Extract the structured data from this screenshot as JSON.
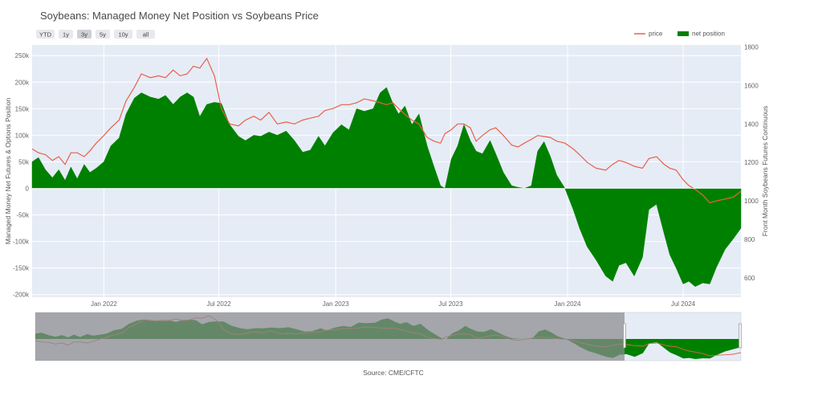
{
  "title": "Soybeans: Managed Money Net Position vs Soybeans Price",
  "range_buttons": [
    {
      "label": "YTD",
      "active": false
    },
    {
      "label": "1y",
      "active": false
    },
    {
      "label": "3y",
      "active": true
    },
    {
      "label": "5y",
      "active": false
    },
    {
      "label": "10y",
      "active": false
    },
    {
      "label": "all",
      "active": false
    }
  ],
  "legend": [
    {
      "label": "price",
      "color": "#e8604c",
      "kind": "line"
    },
    {
      "label": "net position",
      "color": "#008000",
      "kind": "box"
    }
  ],
  "source": "Source: CME/CFTC",
  "colors": {
    "plot_bg": "#e5ecf6",
    "net": "#008000",
    "price": "#e8604c",
    "selector_mask": "#8a8a8f"
  },
  "chart_data": {
    "type": "area",
    "title": "Soybeans: Managed Money Net Position vs Soybeans Price",
    "x_tick_labels": [
      "Jan 2022",
      "Jul 2022",
      "Jan 2023",
      "Jul 2023",
      "Jan 2024",
      "Jul 2024"
    ],
    "x_tick_dates": [
      "2022-01-01",
      "2022-07-01",
      "2023-01-01",
      "2023-07-01",
      "2024-01-01",
      "2024-07-01"
    ],
    "x_range": [
      "2021-09-10",
      "2024-09-30"
    ],
    "y_left": {
      "label": "Managed Money Net Futures & Options Position",
      "range": [
        -205000,
        270000
      ],
      "ticks": [
        -200000,
        -150000,
        -100000,
        -50000,
        0,
        50000,
        100000,
        150000,
        200000,
        250000
      ],
      "tick_labels": [
        "-200k",
        "-150k",
        "-100k",
        "-50k",
        "0",
        "50k",
        "100k",
        "150k",
        "200k",
        "250k"
      ]
    },
    "y_right": {
      "label": "Front Month Soybeans Futures Continuous",
      "range": [
        500,
        1810
      ],
      "ticks": [
        600,
        800,
        1000,
        1200,
        1400,
        1600,
        1800
      ],
      "tick_labels": [
        "600",
        "800",
        "1000",
        "1200",
        "1400",
        "1600",
        "1800"
      ]
    },
    "grid": true,
    "legend_position": "top-right",
    "series": [
      {
        "name": "net position",
        "axis": "left",
        "type": "area",
        "color": "#008000",
        "points": [
          [
            "2021-09-10",
            50000
          ],
          [
            "2021-09-20",
            58000
          ],
          [
            "2021-10-01",
            35000
          ],
          [
            "2021-10-12",
            20000
          ],
          [
            "2021-10-22",
            35000
          ],
          [
            "2021-11-01",
            15000
          ],
          [
            "2021-11-10",
            40000
          ],
          [
            "2021-11-20",
            18000
          ],
          [
            "2021-12-01",
            45000
          ],
          [
            "2021-12-10",
            30000
          ],
          [
            "2021-12-20",
            38000
          ],
          [
            "2022-01-01",
            50000
          ],
          [
            "2022-01-12",
            80000
          ],
          [
            "2022-01-25",
            95000
          ],
          [
            "2022-02-05",
            140000
          ],
          [
            "2022-02-18",
            170000
          ],
          [
            "2022-03-01",
            180000
          ],
          [
            "2022-03-15",
            172000
          ],
          [
            "2022-03-28",
            168000
          ],
          [
            "2022-04-08",
            175000
          ],
          [
            "2022-04-20",
            158000
          ],
          [
            "2022-05-01",
            172000
          ],
          [
            "2022-05-12",
            180000
          ],
          [
            "2022-05-22",
            172000
          ],
          [
            "2022-06-01",
            135000
          ],
          [
            "2022-06-12",
            158000
          ],
          [
            "2022-06-24",
            162000
          ],
          [
            "2022-07-05",
            160000
          ],
          [
            "2022-07-18",
            120000
          ],
          [
            "2022-08-01",
            98000
          ],
          [
            "2022-08-12",
            90000
          ],
          [
            "2022-08-25",
            100000
          ],
          [
            "2022-09-05",
            98000
          ],
          [
            "2022-09-18",
            106000
          ],
          [
            "2022-10-01",
            100000
          ],
          [
            "2022-10-15",
            108000
          ],
          [
            "2022-10-28",
            90000
          ],
          [
            "2022-11-10",
            68000
          ],
          [
            "2022-11-22",
            72000
          ],
          [
            "2022-12-05",
            98000
          ],
          [
            "2022-12-15",
            80000
          ],
          [
            "2022-12-28",
            105000
          ],
          [
            "2023-01-10",
            120000
          ],
          [
            "2023-01-22",
            110000
          ],
          [
            "2023-02-03",
            150000
          ],
          [
            "2023-02-15",
            145000
          ],
          [
            "2023-03-01",
            150000
          ],
          [
            "2023-03-12",
            180000
          ],
          [
            "2023-03-22",
            190000
          ],
          [
            "2023-04-01",
            160000
          ],
          [
            "2023-04-10",
            140000
          ],
          [
            "2023-04-20",
            155000
          ],
          [
            "2023-05-01",
            120000
          ],
          [
            "2023-05-12",
            140000
          ],
          [
            "2023-05-25",
            80000
          ],
          [
            "2023-06-05",
            40000
          ],
          [
            "2023-06-15",
            5000
          ],
          [
            "2023-06-22",
            0
          ],
          [
            "2023-07-02",
            55000
          ],
          [
            "2023-07-12",
            80000
          ],
          [
            "2023-07-22",
            120000
          ],
          [
            "2023-08-01",
            90000
          ],
          [
            "2023-08-10",
            70000
          ],
          [
            "2023-08-20",
            65000
          ],
          [
            "2023-09-01",
            90000
          ],
          [
            "2023-09-10",
            65000
          ],
          [
            "2023-09-22",
            30000
          ],
          [
            "2023-10-05",
            5000
          ],
          [
            "2023-10-15",
            2000
          ],
          [
            "2023-10-25",
            0
          ],
          [
            "2023-11-05",
            5000
          ],
          [
            "2023-11-15",
            70000
          ],
          [
            "2023-11-25",
            88000
          ],
          [
            "2023-12-05",
            60000
          ],
          [
            "2023-12-15",
            25000
          ],
          [
            "2023-12-28",
            0
          ],
          [
            "2024-01-10",
            -40000
          ],
          [
            "2024-01-20",
            -75000
          ],
          [
            "2024-02-01",
            -110000
          ],
          [
            "2024-02-15",
            -135000
          ],
          [
            "2024-03-01",
            -165000
          ],
          [
            "2024-03-12",
            -175000
          ],
          [
            "2024-03-22",
            -145000
          ],
          [
            "2024-04-02",
            -140000
          ],
          [
            "2024-04-15",
            -165000
          ],
          [
            "2024-04-28",
            -130000
          ],
          [
            "2024-05-08",
            -40000
          ],
          [
            "2024-05-20",
            -30000
          ],
          [
            "2024-06-01",
            -85000
          ],
          [
            "2024-06-10",
            -125000
          ],
          [
            "2024-06-20",
            -150000
          ],
          [
            "2024-07-01",
            -180000
          ],
          [
            "2024-07-10",
            -175000
          ],
          [
            "2024-07-20",
            -185000
          ],
          [
            "2024-08-01",
            -178000
          ],
          [
            "2024-08-12",
            -180000
          ],
          [
            "2024-08-22",
            -150000
          ],
          [
            "2024-09-05",
            -115000
          ],
          [
            "2024-09-18",
            -95000
          ],
          [
            "2024-09-30",
            -75000
          ]
        ]
      },
      {
        "name": "price",
        "axis": "right",
        "type": "line",
        "color": "#e8604c",
        "points": [
          [
            "2021-09-10",
            1270
          ],
          [
            "2021-09-20",
            1250
          ],
          [
            "2021-10-01",
            1240
          ],
          [
            "2021-10-12",
            1210
          ],
          [
            "2021-10-22",
            1230
          ],
          [
            "2021-11-01",
            1190
          ],
          [
            "2021-11-10",
            1250
          ],
          [
            "2021-11-20",
            1250
          ],
          [
            "2021-12-01",
            1230
          ],
          [
            "2021-12-10",
            1260
          ],
          [
            "2021-12-20",
            1300
          ],
          [
            "2022-01-01",
            1340
          ],
          [
            "2022-01-12",
            1380
          ],
          [
            "2022-01-25",
            1420
          ],
          [
            "2022-02-05",
            1520
          ],
          [
            "2022-02-18",
            1590
          ],
          [
            "2022-03-01",
            1660
          ],
          [
            "2022-03-15",
            1640
          ],
          [
            "2022-03-28",
            1650
          ],
          [
            "2022-04-08",
            1640
          ],
          [
            "2022-04-20",
            1680
          ],
          [
            "2022-05-01",
            1650
          ],
          [
            "2022-05-12",
            1660
          ],
          [
            "2022-05-22",
            1700
          ],
          [
            "2022-06-01",
            1690
          ],
          [
            "2022-06-12",
            1740
          ],
          [
            "2022-06-24",
            1650
          ],
          [
            "2022-07-05",
            1480
          ],
          [
            "2022-07-18",
            1400
          ],
          [
            "2022-08-01",
            1390
          ],
          [
            "2022-08-12",
            1420
          ],
          [
            "2022-08-25",
            1440
          ],
          [
            "2022-09-05",
            1420
          ],
          [
            "2022-09-18",
            1460
          ],
          [
            "2022-10-01",
            1400
          ],
          [
            "2022-10-15",
            1410
          ],
          [
            "2022-10-28",
            1400
          ],
          [
            "2022-11-10",
            1420
          ],
          [
            "2022-11-22",
            1430
          ],
          [
            "2022-12-05",
            1440
          ],
          [
            "2022-12-15",
            1470
          ],
          [
            "2022-12-28",
            1480
          ],
          [
            "2023-01-10",
            1500
          ],
          [
            "2023-01-22",
            1500
          ],
          [
            "2023-02-03",
            1510
          ],
          [
            "2023-02-15",
            1530
          ],
          [
            "2023-03-01",
            1520
          ],
          [
            "2023-03-12",
            1510
          ],
          [
            "2023-03-22",
            1500
          ],
          [
            "2023-04-01",
            1510
          ],
          [
            "2023-04-10",
            1480
          ],
          [
            "2023-04-20",
            1450
          ],
          [
            "2023-05-01",
            1420
          ],
          [
            "2023-05-12",
            1400
          ],
          [
            "2023-05-25",
            1330
          ],
          [
            "2023-06-05",
            1310
          ],
          [
            "2023-06-15",
            1300
          ],
          [
            "2023-06-22",
            1350
          ],
          [
            "2023-07-02",
            1370
          ],
          [
            "2023-07-12",
            1400
          ],
          [
            "2023-07-22",
            1400
          ],
          [
            "2023-08-01",
            1380
          ],
          [
            "2023-08-10",
            1310
          ],
          [
            "2023-08-20",
            1340
          ],
          [
            "2023-09-01",
            1370
          ],
          [
            "2023-09-10",
            1380
          ],
          [
            "2023-09-22",
            1340
          ],
          [
            "2023-10-05",
            1290
          ],
          [
            "2023-10-15",
            1280
          ],
          [
            "2023-10-25",
            1300
          ],
          [
            "2023-11-05",
            1320
          ],
          [
            "2023-11-15",
            1340
          ],
          [
            "2023-11-25",
            1335
          ],
          [
            "2023-12-05",
            1330
          ],
          [
            "2023-12-15",
            1310
          ],
          [
            "2023-12-28",
            1300
          ],
          [
            "2024-01-10",
            1270
          ],
          [
            "2024-01-20",
            1240
          ],
          [
            "2024-02-01",
            1200
          ],
          [
            "2024-02-15",
            1170
          ],
          [
            "2024-03-01",
            1160
          ],
          [
            "2024-03-12",
            1190
          ],
          [
            "2024-03-22",
            1210
          ],
          [
            "2024-04-02",
            1200
          ],
          [
            "2024-04-15",
            1180
          ],
          [
            "2024-04-28",
            1170
          ],
          [
            "2024-05-08",
            1220
          ],
          [
            "2024-05-20",
            1230
          ],
          [
            "2024-06-01",
            1190
          ],
          [
            "2024-06-10",
            1170
          ],
          [
            "2024-06-20",
            1160
          ],
          [
            "2024-07-01",
            1110
          ],
          [
            "2024-07-10",
            1080
          ],
          [
            "2024-07-20",
            1060
          ],
          [
            "2024-08-01",
            1030
          ],
          [
            "2024-08-12",
            990
          ],
          [
            "2024-08-22",
            1000
          ],
          [
            "2024-09-05",
            1010
          ],
          [
            "2024-09-18",
            1020
          ],
          [
            "2024-09-30",
            1050
          ]
        ]
      }
    ]
  }
}
